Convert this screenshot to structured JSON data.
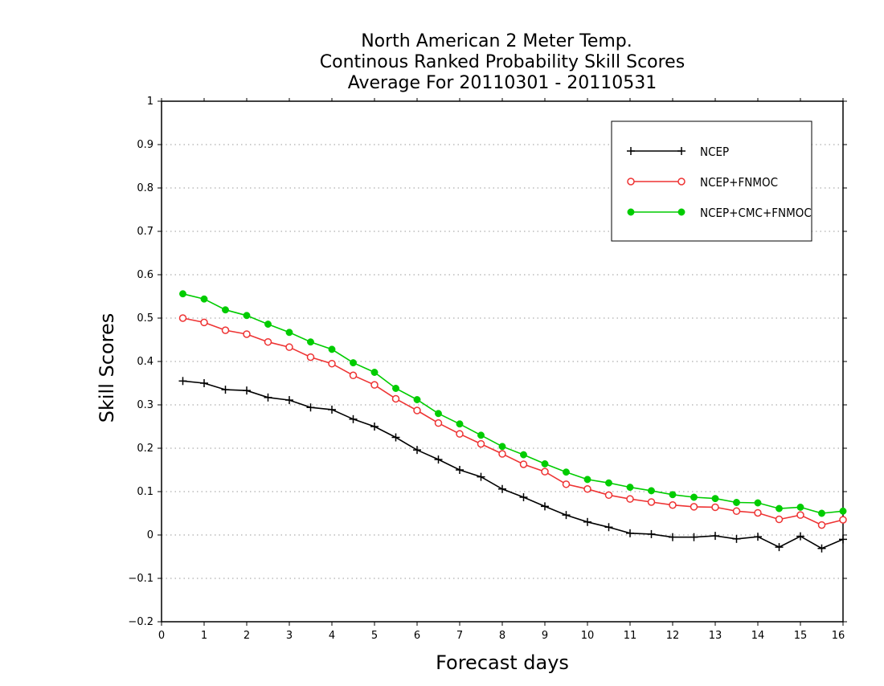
{
  "chart_data": {
    "type": "line",
    "title_lines": [
      "North American 2 Meter Temp.",
      "Continous Ranked Probability Skill Scores",
      "Average For 20110301 - 20110531"
    ],
    "xlabel": "Forecast days",
    "ylabel": "Skill Scores",
    "xlim": [
      0,
      16
    ],
    "ylim": [
      -0.2,
      1
    ],
    "x_ticks": [
      "0",
      "1",
      "2",
      "3",
      "4",
      "5",
      "6",
      "7",
      "8",
      "9",
      "10",
      "11",
      "12",
      "13",
      "14",
      "15",
      "16"
    ],
    "y_ticks": [
      "1",
      "0.9",
      "0.8",
      "0.7",
      "0.6",
      "0.5",
      "0.4",
      "0.3",
      "0.2",
      "0.1",
      "0",
      "−0.1",
      "−0.2"
    ],
    "y_tick_values": [
      1,
      0.9,
      0.8,
      0.7,
      0.6,
      0.5,
      0.4,
      0.3,
      0.2,
      0.1,
      0,
      -0.1,
      -0.2
    ],
    "grid": "horizontal dotted",
    "legend_position": "top-right",
    "x": [
      0.5,
      1,
      1.5,
      2,
      2.5,
      3,
      3.5,
      4,
      4.5,
      5,
      5.5,
      6,
      6.5,
      7,
      7.5,
      8,
      8.5,
      9,
      9.5,
      10,
      10.5,
      11,
      11.5,
      12,
      12.5,
      13,
      13.5,
      14,
      14.5,
      15,
      15.5,
      16
    ],
    "series": [
      {
        "name": "NCEP",
        "color": "#000000",
        "marker": "plus",
        "values": [
          0.355,
          0.35,
          0.335,
          0.333,
          0.317,
          0.311,
          0.294,
          0.289,
          0.267,
          0.25,
          0.225,
          0.196,
          0.174,
          0.15,
          0.134,
          0.106,
          0.087,
          0.066,
          0.046,
          0.03,
          0.018,
          0.004,
          0.002,
          -0.005,
          -0.005,
          -0.002,
          -0.009,
          -0.004,
          -0.028,
          -0.003,
          -0.031,
          -0.01
        ]
      },
      {
        "name": "NCEP+FNMOC",
        "color": "#ee3333",
        "marker": "open-circle",
        "values": [
          0.5,
          0.49,
          0.472,
          0.463,
          0.445,
          0.433,
          0.41,
          0.395,
          0.368,
          0.346,
          0.314,
          0.287,
          0.258,
          0.233,
          0.21,
          0.187,
          0.163,
          0.146,
          0.117,
          0.106,
          0.092,
          0.083,
          0.076,
          0.069,
          0.065,
          0.064,
          0.055,
          0.051,
          0.036,
          0.046,
          0.023,
          0.035
        ]
      },
      {
        "name": "NCEP+CMC+FNMOC",
        "color": "#00cc00",
        "marker": "filled-circle",
        "values": [
          0.556,
          0.544,
          0.519,
          0.506,
          0.486,
          0.467,
          0.445,
          0.428,
          0.397,
          0.375,
          0.338,
          0.312,
          0.28,
          0.256,
          0.23,
          0.204,
          0.185,
          0.164,
          0.145,
          0.128,
          0.12,
          0.11,
          0.102,
          0.093,
          0.087,
          0.084,
          0.075,
          0.074,
          0.061,
          0.064,
          0.05,
          0.055
        ]
      }
    ]
  }
}
